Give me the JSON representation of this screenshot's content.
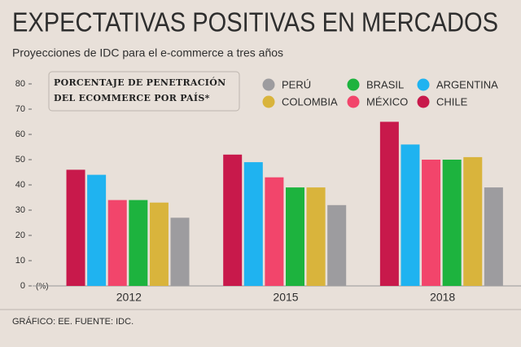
{
  "chart_data": {
    "type": "bar",
    "title": "EXPECTATIVAS POSITIVAS EN MERCADOS",
    "subtitle": "Proyecciones de IDC para el e-commerce a tres años",
    "legend_title": "PORCENTAJE DE PENETRACIÓN DEL ECOMMERCE POR PAÍS*",
    "y_unit": "(%)",
    "footer": "GRÁFICO: EE. FUENTE: IDC.",
    "categories": [
      "2012",
      "2015",
      "2018"
    ],
    "series": [
      {
        "name": "CHILE",
        "color": "#c8194b",
        "values": [
          46,
          52,
          65
        ]
      },
      {
        "name": "ARGENTINA",
        "color": "#1fb3f0",
        "values": [
          44,
          49,
          56
        ]
      },
      {
        "name": "MÉXICO",
        "color": "#f2456b",
        "values": [
          34,
          43,
          50
        ]
      },
      {
        "name": "BRASIL",
        "color": "#1db33e",
        "values": [
          34,
          39,
          50
        ]
      },
      {
        "name": "COLOMBIA",
        "color": "#d9b43c",
        "values": [
          33,
          39,
          51
        ]
      },
      {
        "name": "PERÚ",
        "color": "#9d9c9f",
        "values": [
          27,
          32,
          39
        ]
      }
    ],
    "ylim": [
      0,
      80
    ],
    "yticks": [
      0,
      10,
      20,
      30,
      40,
      50,
      60,
      70,
      80
    ]
  }
}
